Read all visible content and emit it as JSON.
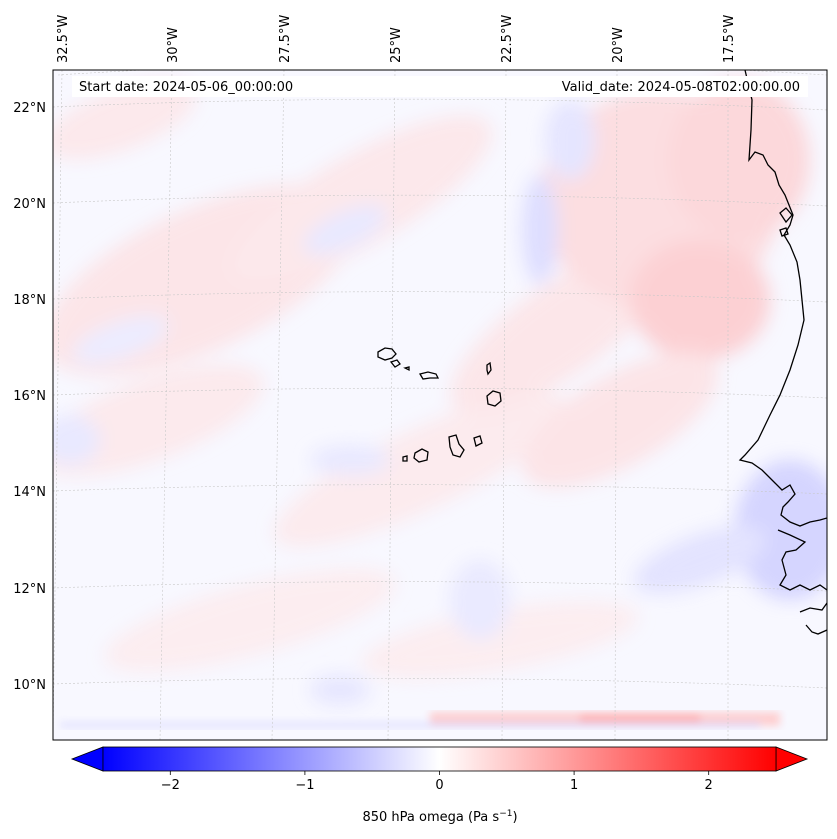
{
  "map": {
    "start_date": "Start date: 2024-05-06_00:00:00",
    "valid_date": "Valid_date: 2024-05-08T02:00:00.00",
    "longitude_labels": [
      "32.5°W",
      "30°W",
      "27.5°W",
      "25°W",
      "22.5°W",
      "20°W",
      "17.5°W"
    ],
    "latitude_labels": [
      "22°N",
      "20°N",
      "18°N",
      "16°N",
      "14°N",
      "12°N",
      "10°N"
    ],
    "variable": "850 hPa omega",
    "units": "Pa s",
    "units_exponent": "−1",
    "colormap": "bwr",
    "colors": {
      "negative": "#0000ff",
      "zero": "#ffffff",
      "positive": "#ff0000",
      "coastline": "#000000",
      "gridline": "#b0b0b0"
    }
  },
  "colorbar": {
    "ticks": [
      "−2",
      "−1",
      "0",
      "1",
      "2"
    ],
    "tick_values": [
      -2,
      -1,
      0,
      1,
      2
    ],
    "range": [
      -2.5,
      2.5
    ],
    "extend": "both"
  }
}
